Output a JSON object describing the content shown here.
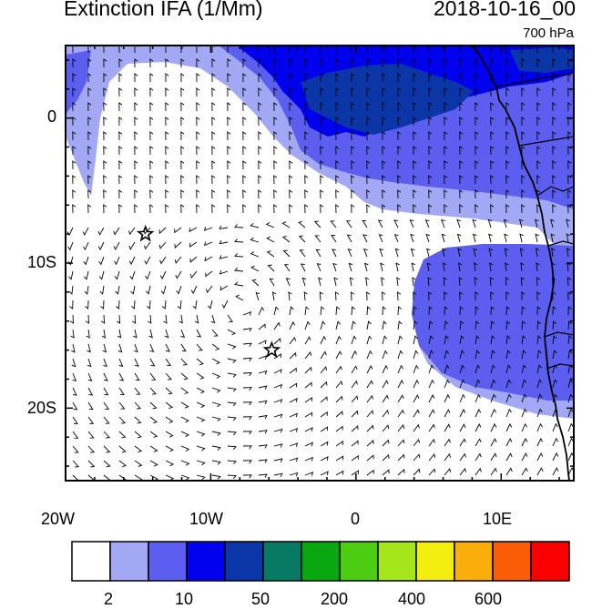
{
  "title": "Extinction IFA (1/Mm)",
  "date": "2018-10-16_00",
  "level": "700 hPa",
  "axes": {
    "lat_labels": [
      "0",
      "10S",
      "20S"
    ],
    "lon_labels": [
      "20W",
      "10W",
      "0",
      "10E"
    ]
  },
  "colorbar": {
    "colors": [
      "#ffffff",
      "#a3a8f5",
      "#5c5ef0",
      "#0000ee",
      "#0a36a8",
      "#067a63",
      "#07a90f",
      "#4ccd11",
      "#a4e61a",
      "#f2ef0f",
      "#f9ae0b",
      "#fa5c08",
      "#fb0000"
    ],
    "labels": [
      "2",
      "10",
      "50",
      "200",
      "400",
      "600"
    ]
  },
  "markers": [
    {
      "name": "star-marker-1",
      "lon": -14.5,
      "lat": -8.0
    },
    {
      "name": "star-marker-2",
      "lon": -5.8,
      "lat": -16.0
    }
  ]
}
